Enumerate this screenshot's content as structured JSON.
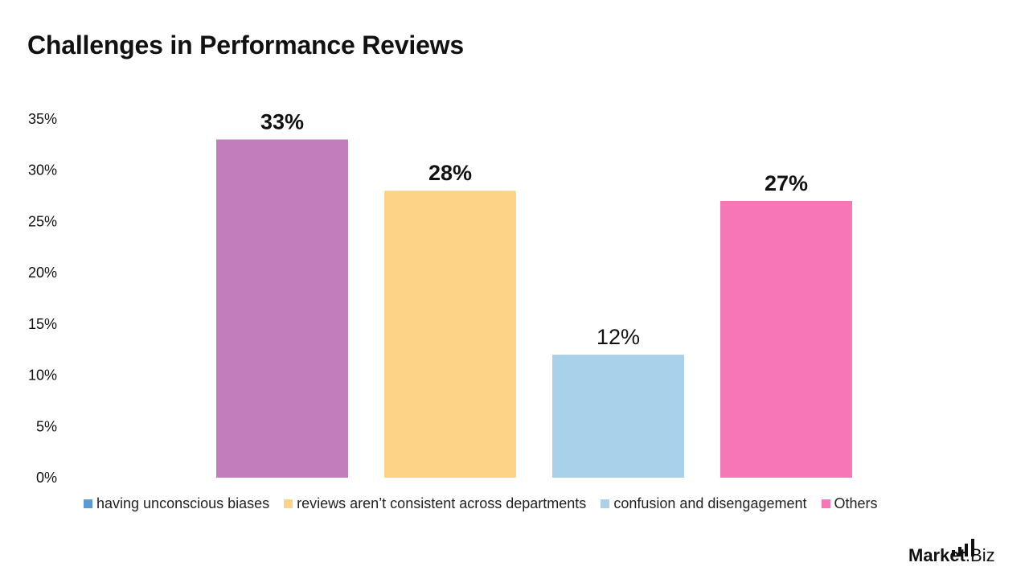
{
  "title": "Challenges in Performance Reviews",
  "chart_data": {
    "type": "bar",
    "categories": [
      "having unconscious biases",
      "reviews aren’t consistent across departments",
      "confusion and disengagement",
      "Others"
    ],
    "values": [
      33,
      28,
      12,
      27
    ],
    "data_labels": [
      "33%",
      "28%",
      "12%",
      "27%"
    ],
    "data_label_bold": [
      true,
      true,
      false,
      true
    ],
    "bar_colors": [
      "#C27DBC",
      "#FDD387",
      "#A9D1EA",
      "#F577B8"
    ],
    "legend_colors": [
      "#5B9BD5",
      "#FDD387",
      "#A9D1EA",
      "#F577B8"
    ],
    "ylim": [
      0,
      35
    ],
    "yticks": [
      0,
      5,
      10,
      15,
      20,
      25,
      30,
      35
    ],
    "ytick_labels": [
      "0%",
      "5%",
      "10%",
      "15%",
      "20%",
      "25%",
      "30%",
      "35%"
    ],
    "grid": false,
    "legend_position": "bottom",
    "xlabel": "",
    "ylabel": ""
  },
  "brand": {
    "bold": "Market",
    "rest": ".Biz"
  }
}
